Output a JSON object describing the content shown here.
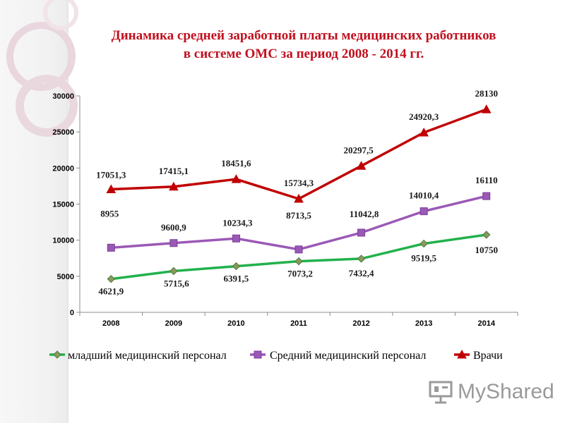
{
  "slide": {
    "title_line1": "Динамика средней заработной платы медицинских работников",
    "title_line2": "в системе ОМС за период 2008 -  2014 гг.",
    "watermark_text": "MyShared"
  },
  "colors": {
    "title": "#c0111f",
    "junior": "#22b14c",
    "junior_marker": "#8a9a5b",
    "middle": "#9b59b6",
    "doctors": "#c00000"
  },
  "chart_data": {
    "type": "line",
    "title": "Динамика средней заработной платы медицинских работников в системе ОМС за период 2008 -  2014 гг.",
    "categories": [
      "2008",
      "2009",
      "2010",
      "2011",
      "2012",
      "2013",
      "2014"
    ],
    "ylim": [
      0,
      30000
    ],
    "yticks": [
      "0",
      "5000",
      "10000",
      "15000",
      "20000",
      "25000",
      "30000"
    ],
    "grid": false,
    "legend_position": "bottom",
    "series": [
      {
        "name": "младший медицинский персонал",
        "marker": "diamond",
        "values": [
          4621.9,
          5715.6,
          6391.5,
          7073.2,
          7432.4,
          9519.5,
          10750
        ],
        "labels": [
          "4621,9",
          "5715,6",
          "6391,5",
          "7073,2",
          "7432,4",
          "9519,5",
          "10750"
        ]
      },
      {
        "name": "Средний медицинский персонал",
        "marker": "square",
        "values": [
          8955,
          9600.9,
          10234.3,
          8713.5,
          11042.8,
          14010.4,
          16110
        ],
        "labels": [
          "8955",
          "9600,9",
          "10234,3",
          "8713,5",
          "11042,8",
          "14010,4",
          "16110"
        ]
      },
      {
        "name": "Врачи",
        "marker": "triangle",
        "values": [
          17051.3,
          17415.1,
          18451.6,
          15734.3,
          20297.5,
          24920.3,
          28130
        ],
        "labels": [
          "17051,3",
          "17415,1",
          "18451,6",
          "15734,3",
          "20297,5",
          "24920,3",
          "28130"
        ]
      }
    ]
  }
}
